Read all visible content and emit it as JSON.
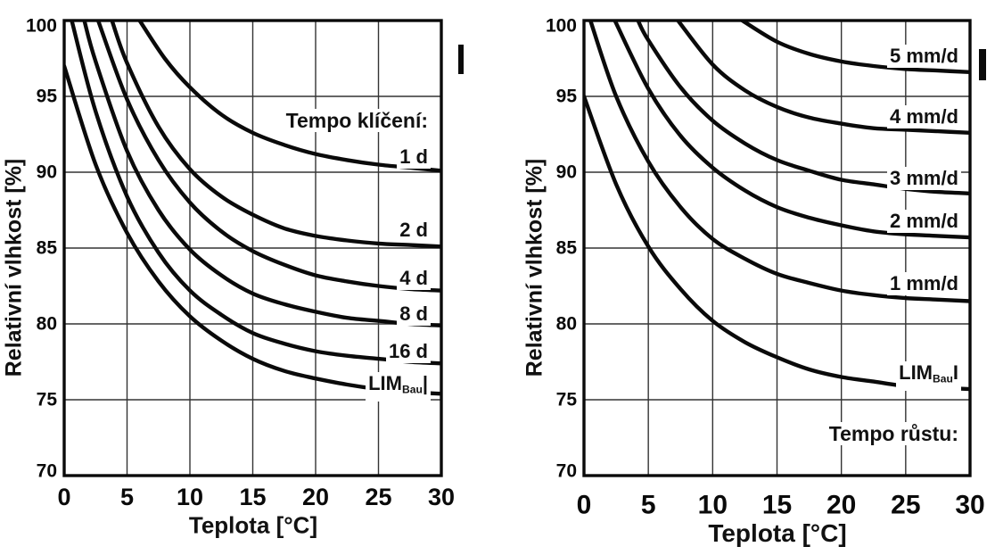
{
  "figure": {
    "description": "Two isopleth line charts of relative humidity vs temperature for mold germination time and growth rate",
    "marker_left": "I",
    "marker_right": "I"
  },
  "chart_data": [
    {
      "type": "line",
      "annotation": "Tempo klíčení:",
      "xlabel": "Teplota [°C]",
      "ylabel": "Relativní vlhkost [%]",
      "xlim": [
        0,
        30
      ],
      "ylim": [
        70,
        100
      ],
      "xticks": [
        0,
        5,
        10,
        15,
        20,
        25,
        30
      ],
      "yticks": [
        100,
        95,
        90,
        85,
        80,
        75,
        70
      ],
      "grid": true,
      "legend_position": "right-inline",
      "series": [
        {
          "name": "1 d",
          "points": [
            [
              6,
              100
            ],
            [
              8,
              97.5
            ],
            [
              10,
              95.6
            ],
            [
              12.5,
              93.8
            ],
            [
              15,
              92.6
            ],
            [
              17.5,
              91.8
            ],
            [
              20,
              91.2
            ],
            [
              22.5,
              90.8
            ],
            [
              25,
              90.5
            ],
            [
              27.5,
              90.3
            ],
            [
              30,
              90.1
            ]
          ]
        },
        {
          "name": "2 d",
          "points": [
            [
              3.8,
              100
            ],
            [
              5,
              97.2
            ],
            [
              7.5,
              93.0
            ],
            [
              10,
              90.2
            ],
            [
              12.5,
              88.4
            ],
            [
              15,
              87.2
            ],
            [
              17.5,
              86.3
            ],
            [
              20,
              85.8
            ],
            [
              22.5,
              85.5
            ],
            [
              25,
              85.3
            ],
            [
              27.5,
              85.2
            ],
            [
              30,
              85.1
            ]
          ]
        },
        {
          "name": "4 d",
          "points": [
            [
              2.7,
              100
            ],
            [
              5,
              94.8
            ],
            [
              7.5,
              90.8
            ],
            [
              10,
              88.0
            ],
            [
              12.5,
              86.1
            ],
            [
              15,
              84.8
            ],
            [
              17.5,
              83.9
            ],
            [
              20,
              83.2
            ],
            [
              22.5,
              82.8
            ],
            [
              25,
              82.5
            ],
            [
              27.5,
              82.3
            ],
            [
              30,
              82.2
            ]
          ]
        },
        {
          "name": "8 d",
          "points": [
            [
              1.6,
              100
            ],
            [
              2.5,
              97.3
            ],
            [
              5,
              91.4
            ],
            [
              7.5,
              87.5
            ],
            [
              10,
              84.9
            ],
            [
              12.5,
              83.2
            ],
            [
              15,
              82.0
            ],
            [
              17.5,
              81.3
            ],
            [
              20,
              80.8
            ],
            [
              22.5,
              80.4
            ],
            [
              25,
              80.2
            ],
            [
              27.5,
              80.0
            ],
            [
              30,
              79.9
            ]
          ]
        },
        {
          "name": "16 d",
          "points": [
            [
              0.6,
              100
            ],
            [
              2.5,
              94.0
            ],
            [
              5,
              88.4
            ],
            [
              7.5,
              84.7
            ],
            [
              10,
              82.2
            ],
            [
              12.5,
              80.6
            ],
            [
              15,
              79.4
            ],
            [
              17.5,
              78.7
            ],
            [
              20,
              78.2
            ],
            [
              22.5,
              77.9
            ],
            [
              25,
              77.7
            ],
            [
              27.5,
              77.5
            ],
            [
              30,
              77.4
            ]
          ]
        },
        {
          "name": "LIM_Bau",
          "display": {
            "main": "LIM",
            "sub": "Bau",
            "suffix": "|"
          },
          "points": [
            [
              0,
              97
            ],
            [
              2.5,
              90.5
            ],
            [
              5,
              86.0
            ],
            [
              7.5,
              82.8
            ],
            [
              10,
              80.5
            ],
            [
              12.5,
              78.9
            ],
            [
              15,
              77.7
            ],
            [
              17.5,
              76.9
            ],
            [
              20,
              76.4
            ],
            [
              22.5,
              76.0
            ],
            [
              25,
              75.7
            ],
            [
              27.5,
              75.5
            ],
            [
              30,
              75.4
            ]
          ]
        }
      ]
    },
    {
      "type": "line",
      "annotation": "Tempo růstu:",
      "xlabel": "Teplota [°C]",
      "ylabel": "Relativní vlhkost [%]",
      "xlim": [
        0,
        30
      ],
      "ylim": [
        70,
        100
      ],
      "xticks": [
        0,
        5,
        10,
        15,
        20,
        25,
        30
      ],
      "yticks": [
        100,
        95,
        90,
        85,
        80,
        75,
        70
      ],
      "grid": true,
      "legend_position": "right-inline",
      "series": [
        {
          "name": "5 mm/d",
          "points": [
            [
              12.3,
              100
            ],
            [
              15,
              98.6
            ],
            [
              17.5,
              97.8
            ],
            [
              20,
              97.3
            ],
            [
              22.5,
              97.0
            ],
            [
              25,
              96.8
            ],
            [
              27.5,
              96.7
            ],
            [
              30,
              96.6
            ]
          ]
        },
        {
          "name": "4 mm/d",
          "points": [
            [
              7.3,
              100
            ],
            [
              10,
              97.1
            ],
            [
              12.5,
              95.4
            ],
            [
              15,
              94.3
            ],
            [
              17.5,
              93.6
            ],
            [
              20,
              93.2
            ],
            [
              22.5,
              92.9
            ],
            [
              25,
              92.8
            ],
            [
              27.5,
              92.7
            ],
            [
              30,
              92.6
            ]
          ]
        },
        {
          "name": "3 mm/d",
          "points": [
            [
              4.2,
              100
            ],
            [
              5,
              98.7
            ],
            [
              7.5,
              95.6
            ],
            [
              10,
              93.4
            ],
            [
              12.5,
              91.9
            ],
            [
              15,
              90.8
            ],
            [
              17.5,
              90.1
            ],
            [
              20,
              89.5
            ],
            [
              22.5,
              89.2
            ],
            [
              25,
              88.9
            ],
            [
              27.5,
              88.7
            ],
            [
              30,
              88.6
            ]
          ]
        },
        {
          "name": "2 mm/d",
          "points": [
            [
              2.4,
              100
            ],
            [
              5,
              95.5
            ],
            [
              7.5,
              92.4
            ],
            [
              10,
              90.3
            ],
            [
              12.5,
              88.8
            ],
            [
              15,
              87.7
            ],
            [
              17.5,
              87.0
            ],
            [
              20,
              86.5
            ],
            [
              22.5,
              86.1
            ],
            [
              25,
              85.9
            ],
            [
              27.5,
              85.8
            ],
            [
              30,
              85.7
            ]
          ]
        },
        {
          "name": "1 mm/d",
          "points": [
            [
              0.5,
              100
            ],
            [
              2.5,
              95.0
            ],
            [
              5,
              90.7
            ],
            [
              7.5,
              87.7
            ],
            [
              10,
              85.6
            ],
            [
              12.5,
              84.3
            ],
            [
              15,
              83.3
            ],
            [
              17.5,
              82.7
            ],
            [
              20,
              82.2
            ],
            [
              22.5,
              81.9
            ],
            [
              25,
              81.7
            ],
            [
              27.5,
              81.6
            ],
            [
              30,
              81.5
            ]
          ]
        },
        {
          "name": "LIM_Bau",
          "display": {
            "main": "LIM",
            "sub": "Bau",
            "suffix": "I"
          },
          "points": [
            [
              0,
              95
            ],
            [
              2.5,
              89.2
            ],
            [
              5,
              85.1
            ],
            [
              7.5,
              82.3
            ],
            [
              10,
              80.2
            ],
            [
              12.5,
              78.8
            ],
            [
              15,
              77.8
            ],
            [
              17.5,
              77.0
            ],
            [
              20,
              76.5
            ],
            [
              22.5,
              76.2
            ],
            [
              25,
              75.9
            ],
            [
              27.5,
              75.8
            ],
            [
              30,
              75.7
            ]
          ]
        }
      ]
    }
  ]
}
